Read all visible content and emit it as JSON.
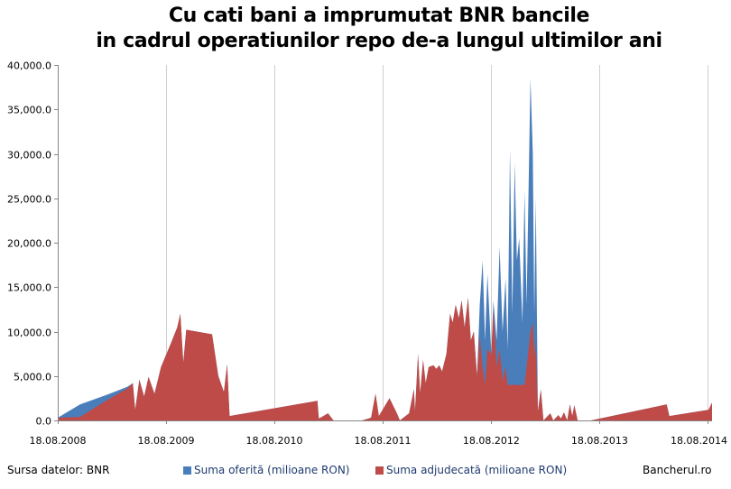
{
  "header": {
    "title_line1": "Cu cati bani a imprumutat BNR bancile",
    "title_line2": "in cadrul operatiunilor repo de-a lungul ultimilor ani"
  },
  "footer": {
    "source": "Sursa datelor: BNR",
    "brand": "Bancherul.ro"
  },
  "colors": {
    "offered": "#4a7ebb",
    "awarded": "#be4b48",
    "axis": "#868686",
    "grid": "#cfcfcf"
  },
  "chart_data": {
    "type": "area",
    "title": "Cu cati bani a imprumutat BNR bancile in cadrul operatiunilor repo de-a lungul ultimilor ani",
    "xlabel": "",
    "ylabel": "",
    "ylim": [
      0,
      40000
    ],
    "yticks": [
      "0.0",
      "5,000.0",
      "10,000.0",
      "15,000.0",
      "20,000.0",
      "25,000.0",
      "30,000.0",
      "35,000.0",
      "40,000.0"
    ],
    "xticks": [
      "18.08.2008",
      "18.08.2009",
      "18.08.2010",
      "18.08.2011",
      "18.08.2012",
      "18.08.2013",
      "18.08.2014"
    ],
    "xlim": [
      "2008-08-18",
      "2014-09-01"
    ],
    "grid": "vertical",
    "legend": "bottom",
    "series": [
      {
        "name": "Suma oferită (milioane RON)",
        "points": [
          [
            "2008-08-18",
            300
          ],
          [
            "2008-11-01",
            1800
          ],
          [
            "2009-02-01",
            2900
          ],
          [
            "2009-04-10",
            3800
          ],
          [
            "2009-04-28",
            4200
          ],
          [
            "2009-05-06",
            1200
          ],
          [
            "2009-05-20",
            4600
          ],
          [
            "2009-06-05",
            2700
          ],
          [
            "2009-06-20",
            4900
          ],
          [
            "2009-07-10",
            3000
          ],
          [
            "2009-08-01",
            6000
          ],
          [
            "2009-09-05",
            8800
          ],
          [
            "2009-09-25",
            10500
          ],
          [
            "2009-10-05",
            12000
          ],
          [
            "2009-10-15",
            6500
          ],
          [
            "2009-10-25",
            10200
          ],
          [
            "2010-01-20",
            9700
          ],
          [
            "2010-02-10",
            5000
          ],
          [
            "2010-03-01",
            3200
          ],
          [
            "2010-03-12",
            6300
          ],
          [
            "2010-03-20",
            500
          ],
          [
            "2011-01-10",
            2200
          ],
          [
            "2011-01-15",
            200
          ],
          [
            "2011-02-15",
            800
          ],
          [
            "2011-03-05",
            0
          ],
          [
            "2011-06-10",
            0
          ],
          [
            "2011-07-10",
            300
          ],
          [
            "2011-07-25",
            3000
          ],
          [
            "2011-08-05",
            500
          ],
          [
            "2011-09-10",
            2500
          ],
          [
            "2011-10-05",
            800
          ],
          [
            "2011-10-15",
            0
          ],
          [
            "2011-11-15",
            800
          ],
          [
            "2011-12-01",
            3500
          ],
          [
            "2011-12-05",
            1000
          ],
          [
            "2011-12-15",
            7500
          ],
          [
            "2011-12-22",
            3000
          ],
          [
            "2012-01-01",
            6800
          ],
          [
            "2012-01-10",
            4200
          ],
          [
            "2012-01-20",
            6000
          ],
          [
            "2012-02-05",
            6200
          ],
          [
            "2012-02-15",
            5800
          ],
          [
            "2012-02-25",
            6200
          ],
          [
            "2012-03-05",
            5500
          ],
          [
            "2012-03-20",
            7500
          ],
          [
            "2012-04-01",
            12000
          ],
          [
            "2012-04-10",
            11000
          ],
          [
            "2012-04-20",
            13000
          ],
          [
            "2012-05-01",
            11500
          ],
          [
            "2012-05-10",
            13500
          ],
          [
            "2012-05-20",
            10500
          ],
          [
            "2012-06-01",
            13800
          ],
          [
            "2012-06-10",
            9000
          ],
          [
            "2012-06-20",
            10000
          ],
          [
            "2012-07-01",
            5000
          ],
          [
            "2012-07-10",
            13000
          ],
          [
            "2012-07-20",
            18000
          ],
          [
            "2012-07-28",
            9000
          ],
          [
            "2012-08-05",
            16500
          ],
          [
            "2012-08-18",
            7500
          ],
          [
            "2012-08-25",
            13500
          ],
          [
            "2012-09-05",
            9000
          ],
          [
            "2012-09-15",
            19500
          ],
          [
            "2012-09-25",
            10000
          ],
          [
            "2012-10-05",
            16000
          ],
          [
            "2012-10-12",
            8000
          ],
          [
            "2012-10-20",
            30500
          ],
          [
            "2012-10-28",
            12000
          ],
          [
            "2012-11-05",
            29000
          ],
          [
            "2012-11-12",
            18000
          ],
          [
            "2012-11-20",
            20500
          ],
          [
            "2012-12-01",
            11000
          ],
          [
            "2012-12-08",
            25800
          ],
          [
            "2012-12-15",
            13000
          ],
          [
            "2012-12-28",
            38500
          ],
          [
            "2013-01-05",
            30000
          ],
          [
            "2013-01-10",
            12000
          ],
          [
            "2013-01-15",
            25000
          ],
          [
            "2013-01-22",
            1000
          ],
          [
            "2013-02-01",
            3500
          ],
          [
            "2013-02-10",
            0
          ],
          [
            "2013-03-05",
            800
          ],
          [
            "2013-03-15",
            0
          ],
          [
            "2013-04-01",
            600
          ],
          [
            "2013-04-10",
            200
          ],
          [
            "2013-04-20",
            900
          ],
          [
            "2013-05-01",
            0
          ],
          [
            "2013-05-10",
            1800
          ],
          [
            "2013-05-18",
            500
          ],
          [
            "2013-05-25",
            1700
          ],
          [
            "2013-06-05",
            0
          ],
          [
            "2013-07-20",
            0
          ],
          [
            "2014-04-01",
            1800
          ],
          [
            "2014-04-10",
            500
          ],
          [
            "2014-08-20",
            1200
          ],
          [
            "2014-09-01",
            2000
          ]
        ]
      },
      {
        "name": "Suma adjudecată (milioane RON)",
        "points": [
          [
            "2008-08-18",
            300
          ],
          [
            "2008-11-01",
            400
          ],
          [
            "2009-02-01",
            2300
          ],
          [
            "2009-04-10",
            3600
          ],
          [
            "2009-04-28",
            4200
          ],
          [
            "2009-05-06",
            1200
          ],
          [
            "2009-05-20",
            4600
          ],
          [
            "2009-06-05",
            2700
          ],
          [
            "2009-06-20",
            4900
          ],
          [
            "2009-07-10",
            3000
          ],
          [
            "2009-08-01",
            6000
          ],
          [
            "2009-09-05",
            8800
          ],
          [
            "2009-09-25",
            10500
          ],
          [
            "2009-10-05",
            12000
          ],
          [
            "2009-10-15",
            6500
          ],
          [
            "2009-10-25",
            10200
          ],
          [
            "2010-01-20",
            9700
          ],
          [
            "2010-02-10",
            5000
          ],
          [
            "2010-03-01",
            3200
          ],
          [
            "2010-03-12",
            6300
          ],
          [
            "2010-03-20",
            500
          ],
          [
            "2011-01-10",
            2200
          ],
          [
            "2011-01-15",
            200
          ],
          [
            "2011-02-15",
            800
          ],
          [
            "2011-03-05",
            0
          ],
          [
            "2011-06-10",
            0
          ],
          [
            "2011-07-10",
            300
          ],
          [
            "2011-07-25",
            3000
          ],
          [
            "2011-08-05",
            500
          ],
          [
            "2011-09-10",
            2500
          ],
          [
            "2011-10-05",
            800
          ],
          [
            "2011-10-15",
            0
          ],
          [
            "2011-11-15",
            800
          ],
          [
            "2011-12-01",
            3500
          ],
          [
            "2011-12-05",
            1000
          ],
          [
            "2011-12-15",
            7500
          ],
          [
            "2011-12-22",
            3000
          ],
          [
            "2012-01-01",
            6800
          ],
          [
            "2012-01-10",
            4200
          ],
          [
            "2012-01-20",
            6000
          ],
          [
            "2012-02-05",
            6200
          ],
          [
            "2012-02-15",
            5800
          ],
          [
            "2012-02-25",
            6200
          ],
          [
            "2012-03-05",
            5500
          ],
          [
            "2012-03-20",
            7500
          ],
          [
            "2012-04-01",
            12000
          ],
          [
            "2012-04-10",
            11000
          ],
          [
            "2012-04-20",
            13000
          ],
          [
            "2012-05-01",
            11500
          ],
          [
            "2012-05-10",
            13500
          ],
          [
            "2012-05-20",
            10500
          ],
          [
            "2012-06-01",
            13800
          ],
          [
            "2012-06-10",
            9000
          ],
          [
            "2012-06-20",
            10000
          ],
          [
            "2012-07-01",
            5000
          ],
          [
            "2012-07-10",
            9500
          ],
          [
            "2012-07-20",
            6000
          ],
          [
            "2012-07-28",
            4000
          ],
          [
            "2012-08-05",
            8000
          ],
          [
            "2012-08-18",
            7500
          ],
          [
            "2012-08-25",
            12500
          ],
          [
            "2012-09-05",
            6000
          ],
          [
            "2012-09-15",
            8000
          ],
          [
            "2012-09-25",
            4500
          ],
          [
            "2012-10-05",
            6000
          ],
          [
            "2012-10-12",
            4000
          ],
          [
            "2012-10-20",
            4000
          ],
          [
            "2012-10-28",
            4000
          ],
          [
            "2012-11-05",
            4000
          ],
          [
            "2012-11-12",
            4000
          ],
          [
            "2012-11-20",
            4000
          ],
          [
            "2012-12-01",
            4000
          ],
          [
            "2012-12-08",
            4000
          ],
          [
            "2012-12-15",
            6000
          ],
          [
            "2012-12-28",
            10000
          ],
          [
            "2013-01-05",
            11000
          ],
          [
            "2013-01-10",
            7000
          ],
          [
            "2013-01-15",
            9000
          ],
          [
            "2013-01-22",
            1000
          ],
          [
            "2013-02-01",
            3500
          ],
          [
            "2013-02-10",
            0
          ],
          [
            "2013-03-05",
            800
          ],
          [
            "2013-03-15",
            0
          ],
          [
            "2013-04-01",
            600
          ],
          [
            "2013-04-10",
            200
          ],
          [
            "2013-04-20",
            900
          ],
          [
            "2013-05-01",
            0
          ],
          [
            "2013-05-10",
            1800
          ],
          [
            "2013-05-18",
            500
          ],
          [
            "2013-05-25",
            1700
          ],
          [
            "2013-06-05",
            0
          ],
          [
            "2013-07-20",
            0
          ],
          [
            "2014-04-01",
            1800
          ],
          [
            "2014-04-10",
            500
          ],
          [
            "2014-08-20",
            1200
          ],
          [
            "2014-09-01",
            2000
          ]
        ]
      }
    ]
  }
}
